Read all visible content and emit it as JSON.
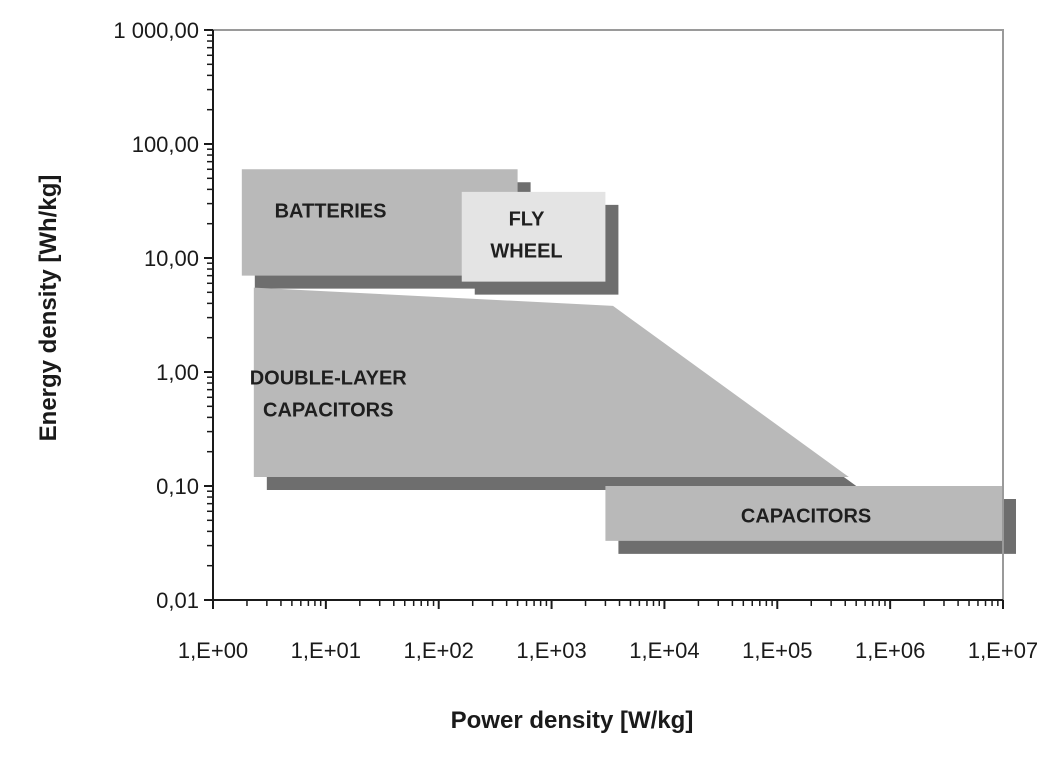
{
  "chart_data": {
    "type": "area",
    "xlabel": "Power density [W/kg]",
    "ylabel": "Energy density [Wh/kg]",
    "x_scale": "log",
    "y_scale": "log",
    "xlim": [
      1,
      10000000
    ],
    "ylim": [
      0.01,
      1000
    ],
    "x_ticks": [
      {
        "value": 1,
        "label": "1,E+00"
      },
      {
        "value": 10,
        "label": "1,E+01"
      },
      {
        "value": 100,
        "label": "1,E+02"
      },
      {
        "value": 1000,
        "label": "1,E+03"
      },
      {
        "value": 10000,
        "label": "1,E+04"
      },
      {
        "value": 100000,
        "label": "1,E+05"
      },
      {
        "value": 1000000,
        "label": "1,E+06"
      },
      {
        "value": 10000000,
        "label": "1,E+07"
      }
    ],
    "y_ticks": [
      {
        "value": 0.01,
        "label": "0,01"
      },
      {
        "value": 0.1,
        "label": "0,10"
      },
      {
        "value": 1,
        "label": "1,00"
      },
      {
        "value": 10,
        "label": "10,00"
      },
      {
        "value": 100,
        "label": "100,00"
      },
      {
        "value": 1000,
        "label": "1 000,00"
      }
    ],
    "grid": false,
    "regions": [
      {
        "name": "double-layer-capacitors",
        "label_lines": [
          "DOUBLE-LAYER",
          "CAPACITORS"
        ],
        "color": "#b9b9b9",
        "polygon": [
          [
            2.3,
            5.5
          ],
          [
            3500,
            3.8
          ],
          [
            430000,
            0.12
          ],
          [
            2.3,
            0.12
          ]
        ],
        "label_at": [
          10.5,
          0.65
        ]
      },
      {
        "name": "batteries",
        "label_lines": [
          "BATTERIES"
        ],
        "color": "#b9b9b9",
        "polygon": [
          [
            1.8,
            60
          ],
          [
            500,
            60
          ],
          [
            500,
            7
          ],
          [
            1.8,
            7
          ]
        ],
        "label_at": [
          11,
          26
        ]
      },
      {
        "name": "flywheel",
        "label_lines": [
          "FLY",
          "WHEEL"
        ],
        "color": "#e4e4e4",
        "polygon": [
          [
            160,
            38
          ],
          [
            3000,
            38
          ],
          [
            3000,
            6.2
          ],
          [
            160,
            6.2
          ]
        ],
        "label_at": [
          600,
          16
        ]
      },
      {
        "name": "capacitors",
        "label_lines": [
          "CAPACITORS"
        ],
        "color": "#b9b9b9",
        "polygon": [
          [
            3000,
            0.1
          ],
          [
            10000000,
            0.1
          ],
          [
            10000000,
            0.033
          ],
          [
            3000,
            0.033
          ]
        ],
        "label_at": [
          180000,
          0.055
        ]
      }
    ]
  }
}
